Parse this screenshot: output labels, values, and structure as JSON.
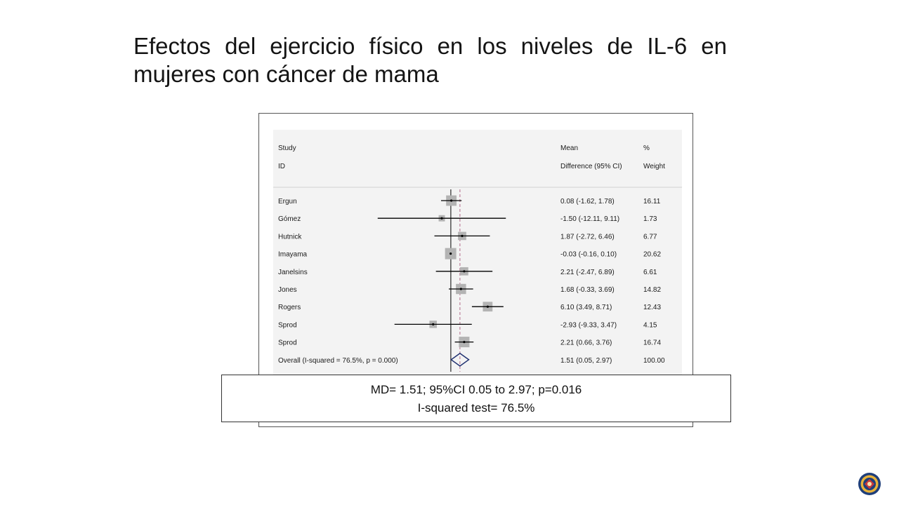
{
  "slide": {
    "title_line1": "Efectos del ejercicio físico en los niveles de IL-6 en",
    "title_line2": "mujeres con cáncer de mama"
  },
  "summary": {
    "line1": "MD= 1.51; 95%CI 0.05 to 2.97; p=0.016",
    "line2": "I-squared test= 76.5%"
  },
  "colors": {
    "study_box": "#b3b3b3",
    "ci_line": "#000000",
    "null_line": "#000000",
    "overall_line": "#b06a8a",
    "diamond": "#1e2f6f",
    "panel_bg": "#f3f3f3"
  },
  "chart_data": {
    "type": "forest",
    "headers": {
      "study": "Study",
      "id": "ID",
      "effect_top": "Mean",
      "effect_bottom": "Difference (95% CI)",
      "weight_top": "%",
      "weight_bottom": "Weight"
    },
    "studies": [
      {
        "name": "Ergun",
        "est": 0.08,
        "lo": -1.62,
        "hi": 1.78,
        "label": "0.08 (-1.62, 1.78)",
        "weight": 16.11,
        "weight_label": "16.11"
      },
      {
        "name": "Gómez",
        "est": -1.5,
        "lo": -12.11,
        "hi": 9.11,
        "label": "-1.50 (-12.11, 9.11)",
        "weight": 1.73,
        "weight_label": "1.73"
      },
      {
        "name": "Hutnick",
        "est": 1.87,
        "lo": -2.72,
        "hi": 6.46,
        "label": "1.87 (-2.72, 6.46)",
        "weight": 6.77,
        "weight_label": "6.77"
      },
      {
        "name": "Imayama",
        "est": -0.03,
        "lo": -0.16,
        "hi": 0.1,
        "label": "-0.03 (-0.16, 0.10)",
        "weight": 20.62,
        "weight_label": "20.62"
      },
      {
        "name": "Janelsins",
        "est": 2.21,
        "lo": -2.47,
        "hi": 6.89,
        "label": "2.21 (-2.47, 6.89)",
        "weight": 6.61,
        "weight_label": "6.61"
      },
      {
        "name": "Jones",
        "est": 1.68,
        "lo": -0.33,
        "hi": 3.69,
        "label": "1.68 (-0.33, 3.69)",
        "weight": 14.82,
        "weight_label": "14.82"
      },
      {
        "name": "Rogers",
        "est": 6.1,
        "lo": 3.49,
        "hi": 8.71,
        "label": "6.10 (3.49, 8.71)",
        "weight": 12.43,
        "weight_label": "12.43"
      },
      {
        "name": "Sprod",
        "est": -2.93,
        "lo": -9.33,
        "hi": 3.47,
        "label": "-2.93 (-9.33, 3.47)",
        "weight": 4.15,
        "weight_label": "4.15"
      },
      {
        "name": "Sprod",
        "est": 2.21,
        "lo": 0.66,
        "hi": 3.76,
        "label": "2.21 (0.66, 3.76)",
        "weight": 16.74,
        "weight_label": "16.74"
      }
    ],
    "overall": {
      "name": "Overall  (I-squared = 76.5%, p = 0.000)",
      "est": 1.51,
      "lo": 0.05,
      "hi": 2.97,
      "label": "1.51 (0.05, 2.97)",
      "weight_label": "100.00"
    },
    "null_value": 0,
    "xlim": [
      -16.5,
      13.5
    ]
  }
}
